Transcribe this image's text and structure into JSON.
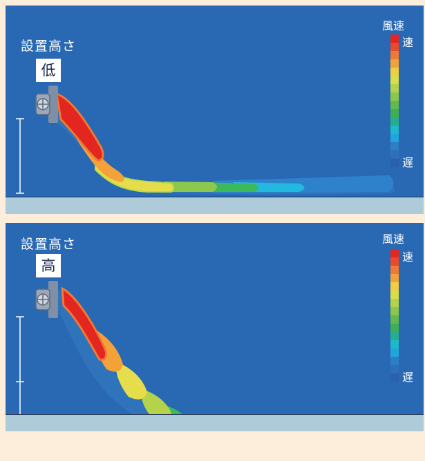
{
  "panels": [
    {
      "heading": "設置高さ",
      "badge": "低",
      "legend": {
        "title": "風速",
        "fast": "速",
        "slow": "遅"
      }
    },
    {
      "heading": "設置高さ",
      "badge": "高",
      "legend": {
        "title": "風速",
        "fast": "速",
        "slow": "遅"
      }
    }
  ],
  "colors": {
    "background": "#fdeedb",
    "panel": "#2968b3",
    "floor": "#aecbd9",
    "scale": [
      "#e3261f",
      "#ea4a2a",
      "#ef7a35",
      "#f3a23a",
      "#f1cd40",
      "#d9dd48",
      "#b5d34a",
      "#8cc64b",
      "#63b94d",
      "#3fae55",
      "#26ad8e",
      "#1fb8c9",
      "#22a4dc",
      "#2c7fc5",
      "#2f6fba",
      "#2a60ae"
    ]
  },
  "icons": {
    "fan": "fan-icon"
  }
}
